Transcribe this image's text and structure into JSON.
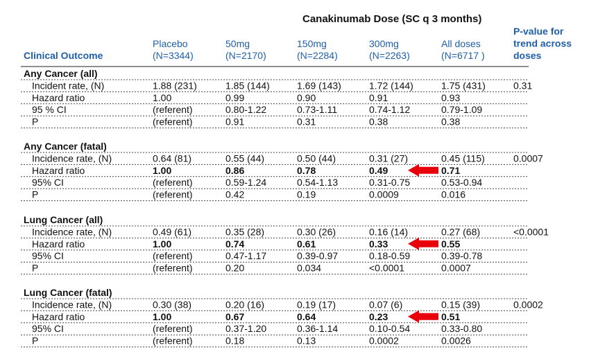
{
  "header": {
    "title": "Canakinumab Dose (SC q 3 months)",
    "clinical_outcome": "Clinical Outcome",
    "columns": [
      {
        "name": "Placebo",
        "n": "(N=3344)"
      },
      {
        "name": "50mg",
        "n": "(N=2170)"
      },
      {
        "name": "150mg",
        "n": "(N=2284)"
      },
      {
        "name": "300mg",
        "n": "(N=2263)"
      },
      {
        "name": "All doses",
        "n": "(N=6717 )"
      }
    ],
    "p_trend_header": [
      "P-value for",
      "trend across",
      "doses"
    ]
  },
  "sections": [
    {
      "title": "Any Cancer (all)",
      "rows": [
        {
          "label": "Incident rate, (N)",
          "cells": [
            "1.88 (231)",
            "1.85 (144)",
            "1.69 (143)",
            "1.72 (144)",
            "1.75 (431)"
          ],
          "p_trend": "0.31"
        },
        {
          "label": "Hazard ratio",
          "cells": [
            "1.00",
            "0.99",
            "0.90",
            "0.91",
            "0.93"
          ]
        },
        {
          "label": "95 % CI",
          "cells": [
            "(referent)",
            "0.80-1.22",
            "0.73-1.11",
            "0.74-1.12",
            "0.79-1.09"
          ]
        },
        {
          "label": "P",
          "cells": [
            "(referent)",
            "0.91",
            "0.31",
            "0.38",
            "0.38"
          ]
        }
      ]
    },
    {
      "title": "Any Cancer (fatal)",
      "rows": [
        {
          "label": "Incidence rate, (N)",
          "cells": [
            "0.64 (81)",
            "0.55 (44)",
            "0.50 (44)",
            "0.31 (27)",
            "0.45 (115)"
          ],
          "p_trend": "0.0007"
        },
        {
          "label": "Hazard ratio",
          "cells": [
            "1.00",
            "0.86",
            "0.78",
            "0.49",
            "0.71"
          ],
          "bold": true,
          "arrow": true
        },
        {
          "label": "95% CI",
          "cells": [
            "(referent)",
            "0.59-1.24",
            "0.54-1.13",
            "0.31-0.75",
            "0.53-0.94"
          ]
        },
        {
          "label": "P",
          "cells": [
            "(referent)",
            "0.42",
            "0.19",
            "0.0009",
            "0.016"
          ]
        }
      ]
    },
    {
      "title": "Lung Cancer (all)",
      "rows": [
        {
          "label": "Incidence rate, (N)",
          "cells": [
            "0.49 (61)",
            "0.35 (28)",
            "0.30 (26)",
            "0.16 (14)",
            "0.27 (68)"
          ],
          "p_trend": "<0.0001"
        },
        {
          "label": "Hazard ratio",
          "cells": [
            "1.00",
            "0.74",
            "0.61",
            "0.33",
            "0.55"
          ],
          "bold": true,
          "arrow": true
        },
        {
          "label": "95% CI",
          "cells": [
            "(referent)",
            "0.47-1.17",
            "0.39-0.97",
            "0.18-0.59",
            "0.39-0.78"
          ]
        },
        {
          "label": "P",
          "cells": [
            "(referent)",
            "0.20",
            "0.034",
            "<0.0001",
            "0.0007"
          ]
        }
      ]
    },
    {
      "title": "Lung Cancer (fatal)",
      "rows": [
        {
          "label": "Incidence rate, (N)",
          "cells": [
            "0.30 (38)",
            "0.20 (16)",
            "0.19 (17)",
            "0.07 (6)",
            "0.15 (39)"
          ],
          "p_trend": "0.0002"
        },
        {
          "label": "Hazard ratio",
          "cells": [
            "1.00",
            "0.67",
            "0.64",
            "0.23",
            "0.51"
          ],
          "bold": true,
          "arrow": true
        },
        {
          "label": "95% CI",
          "cells": [
            "(referent)",
            "0.37-1.20",
            "0.36-1.14",
            "0.10-0.54",
            "0.33-0.80"
          ]
        },
        {
          "label": "P",
          "cells": [
            "(referent)",
            "0.18",
            "0.13",
            "0.0002",
            "0.0026"
          ]
        }
      ]
    }
  ]
}
